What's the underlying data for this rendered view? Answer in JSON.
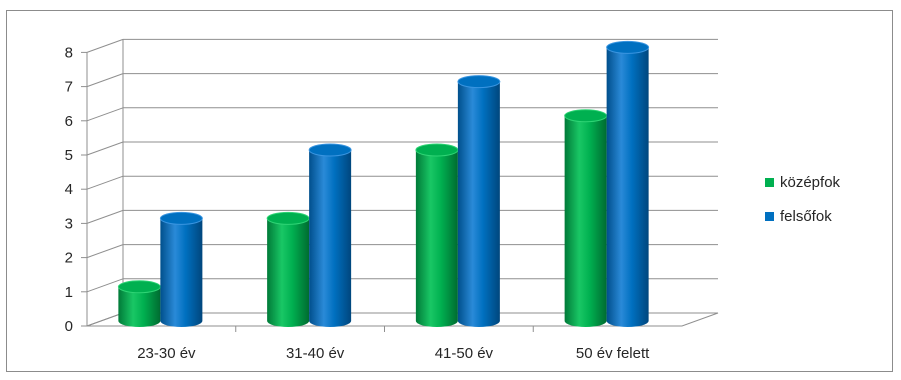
{
  "chart_data": {
    "type": "bar",
    "style": "3d-cylinder",
    "categories": [
      "23-30 év",
      "31-40 év",
      "41-50 év",
      "50 év felett"
    ],
    "series": [
      {
        "name": "középfok",
        "values": [
          1,
          3,
          5,
          6
        ],
        "color": "#00b050"
      },
      {
        "name": "felsőfok",
        "values": [
          3,
          5,
          7,
          8
        ],
        "color": "#0070c0"
      }
    ],
    "yticks": [
      0,
      1,
      2,
      3,
      4,
      5,
      6,
      7,
      8
    ],
    "ylim": [
      0,
      8
    ],
    "grid": true,
    "legend_position": "right"
  }
}
